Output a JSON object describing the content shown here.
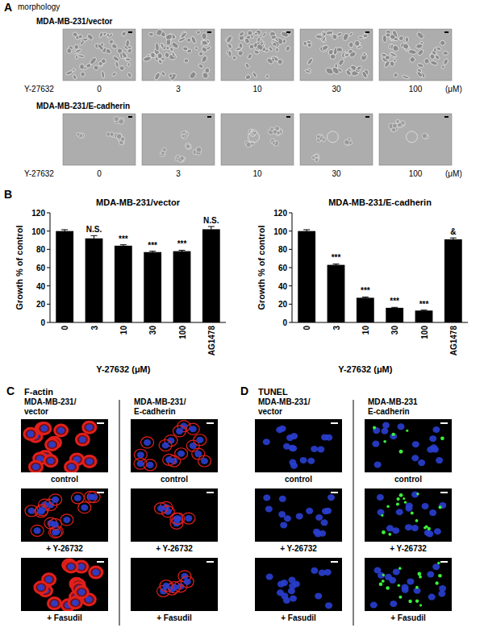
{
  "chart_data": [
    {
      "type": "bar",
      "title": "MDA-MB-231/vector",
      "y_label": "Growth % of control",
      "x_label": "Y-27632 (μM)",
      "categories": [
        "0",
        "3",
        "10",
        "30",
        "100",
        "AG1478"
      ],
      "values": [
        100,
        92,
        84,
        77,
        78,
        102
      ],
      "errors": [
        1.5,
        3,
        1,
        1,
        1,
        3
      ],
      "annotations": [
        null,
        "N.S.",
        "***",
        "***",
        "***",
        "N.S."
      ],
      "color": "#000000",
      "ylim": [
        0,
        120
      ],
      "yticks": [
        0,
        20,
        40,
        60,
        80,
        100,
        120
      ]
    },
    {
      "type": "bar",
      "title": "MDA-MB-231/E-cadherin",
      "y_label": "Growth % of control",
      "x_label": "Y-27632 (μM)",
      "categories": [
        "0",
        "3",
        "10",
        "30",
        "100",
        "AG1478"
      ],
      "values": [
        100,
        63,
        27,
        16,
        13,
        91
      ],
      "errors": [
        1.5,
        1,
        0.8,
        0.5,
        0.5,
        1.5
      ],
      "annotations": [
        null,
        "***",
        "***",
        "***",
        "***",
        "&"
      ],
      "color": "#000000",
      "ylim": [
        0,
        120
      ],
      "yticks": [
        0,
        20,
        40,
        60,
        80,
        100,
        120
      ]
    }
  ],
  "figure": {
    "A": {
      "label": "A",
      "title": "morphology",
      "rows": [
        {
          "name": "MDA-MB-231/vector",
          "dose_label": "Y-27632",
          "doses": [
            0,
            3,
            10,
            30,
            100
          ],
          "unit": "(μM)"
        },
        {
          "name": "MDA-MB-231/E-cadherin",
          "dose_label": "Y-27632",
          "doses": [
            0,
            3,
            10,
            30,
            100
          ],
          "unit": "(μM)"
        }
      ]
    },
    "B": {
      "label": "B"
    },
    "C": {
      "label": "C",
      "title": "F-actin",
      "columns": [
        [
          "MDA-MB-231/",
          "vector"
        ],
        [
          "MDA-MB-231/",
          "E-cadherin"
        ]
      ],
      "rows": [
        "control",
        "+ Y-26732",
        "+ Fasudil"
      ]
    },
    "D": {
      "label": "D",
      "title": "TUNEL",
      "columns": [
        [
          "MDA-MB-231/",
          "vector"
        ],
        [
          "MDA-MB-231",
          "E-cadherin"
        ]
      ],
      "rows": [
        "control",
        "+ Y-26732",
        "+ Fasudil"
      ]
    }
  }
}
